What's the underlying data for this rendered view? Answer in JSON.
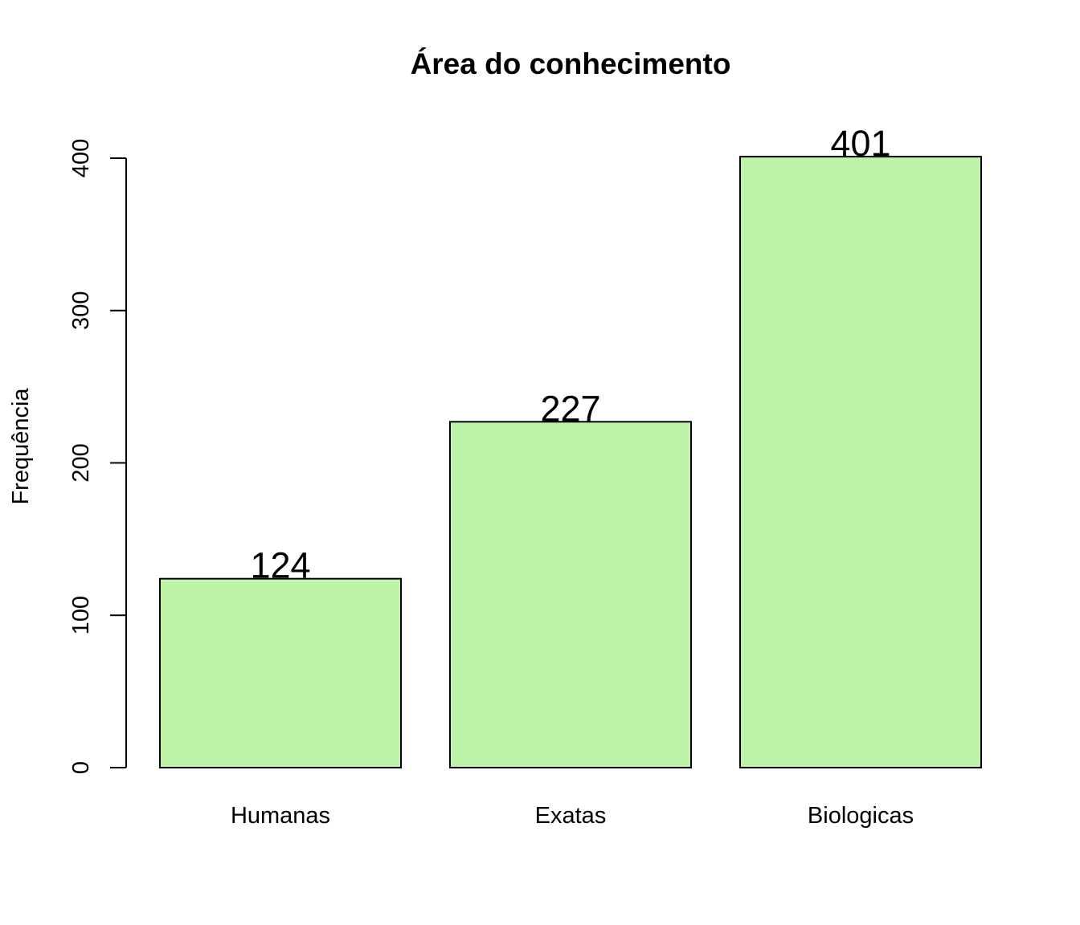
{
  "chart_data": {
    "type": "bar",
    "title": "Área do conhecimento",
    "xlabel": "",
    "ylabel": "Frequência",
    "categories": [
      "Humanas",
      "Exatas",
      "Biologicas"
    ],
    "values": [
      124,
      227,
      401
    ],
    "data_labels": [
      "124",
      "227",
      "401"
    ],
    "ylim": [
      0,
      400
    ],
    "yticks": [
      0,
      100,
      200,
      300,
      400
    ],
    "ytick_labels": [
      "0",
      "100",
      "200",
      "300",
      "400"
    ],
    "bar_color": "#BEF4AA",
    "grid": false,
    "legend": "none"
  }
}
